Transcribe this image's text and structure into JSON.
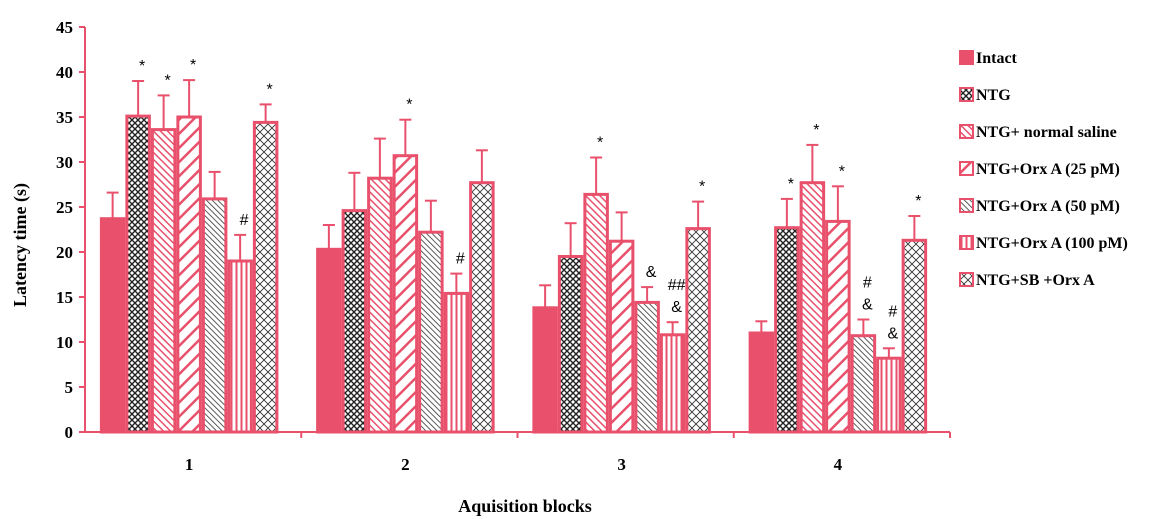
{
  "chart_data": {
    "type": "bar",
    "title": "",
    "xlabel": "Aquisition  blocks",
    "ylabel": "Latency time  (s)",
    "ylim": [
      0,
      45
    ],
    "yticks": [
      0,
      5,
      10,
      15,
      20,
      25,
      30,
      35,
      40,
      45
    ],
    "categories": [
      "1",
      "2",
      "3",
      "4"
    ],
    "legend_position": "right",
    "series": [
      {
        "name": "Intact",
        "pattern": "solid",
        "values": [
          23.7,
          20.3,
          13.8,
          11.0
        ],
        "errors": [
          2.9,
          2.7,
          2.5,
          1.3
        ],
        "annotations": [
          "",
          "",
          "",
          ""
        ]
      },
      {
        "name": "NTG",
        "pattern": "crosshatch",
        "values": [
          35.1,
          24.6,
          19.5,
          22.7
        ],
        "errors": [
          3.9,
          4.2,
          3.7,
          3.2
        ],
        "annotations": [
          "*",
          "",
          "",
          "*"
        ]
      },
      {
        "name": "NTG+ normal saline",
        "pattern": "fine-diagonal",
        "values": [
          33.6,
          28.2,
          26.4,
          27.7
        ],
        "errors": [
          3.8,
          4.4,
          4.1,
          4.2
        ],
        "annotations": [
          "*",
          "",
          "*",
          "*"
        ]
      },
      {
        "name": "NTG+Orx A (25 pM)",
        "pattern": "wide-diagonal",
        "values": [
          35.0,
          30.7,
          21.2,
          23.4
        ],
        "errors": [
          4.1,
          4.0,
          3.2,
          3.9
        ],
        "annotations": [
          "*",
          "*",
          "",
          "*"
        ]
      },
      {
        "name": "NTG+Orx A (50 pM)",
        "pattern": "dense-diagonal",
        "values": [
          25.9,
          22.2,
          14.4,
          10.7
        ],
        "errors": [
          3.0,
          3.5,
          1.7,
          1.8
        ],
        "annotations": [
          "",
          "",
          "&",
          "#\n&"
        ]
      },
      {
        "name": "NTG+Orx A (100 pM)",
        "pattern": "vertical",
        "values": [
          19.0,
          15.4,
          10.8,
          8.2
        ],
        "errors": [
          2.9,
          2.2,
          1.4,
          1.1
        ],
        "annotations": [
          "#",
          "#",
          "##\n&",
          "#\n&"
        ]
      },
      {
        "name": "NTG+SB +Orx A",
        "pattern": "diamond",
        "values": [
          34.4,
          27.7,
          22.6,
          21.3
        ],
        "errors": [
          2.0,
          3.6,
          3.0,
          2.7
        ],
        "annotations": [
          "*",
          "",
          "*",
          "*"
        ]
      }
    ],
    "colors": {
      "bar": "#e8506b",
      "border": "#e8506b",
      "axis": "#e8506b",
      "text": "#000000"
    }
  }
}
